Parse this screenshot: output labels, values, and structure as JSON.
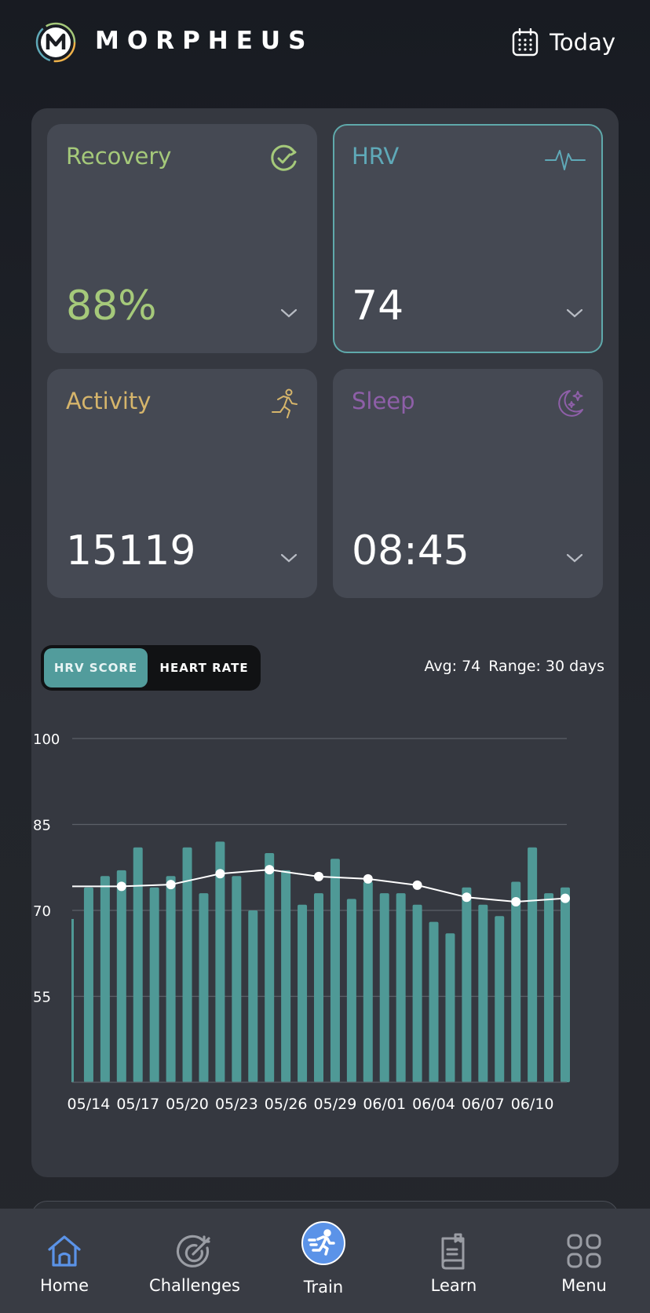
{
  "header": {
    "brand": "MORPHEUS",
    "date_label": "Today"
  },
  "cards": [
    {
      "title": "Recovery",
      "value": "88%",
      "color": "#a5c97a",
      "icon": "recovery-check-icon"
    },
    {
      "title": "HRV",
      "value": "74",
      "color": "#5fa9b8",
      "icon": "heartbeat-icon",
      "selected": true
    },
    {
      "title": "Activity",
      "value": "15119",
      "color": "#d6b56b",
      "icon": "runner-icon"
    },
    {
      "title": "Sleep",
      "value": "08:45",
      "color": "#8e5fa8",
      "icon": "moon-stars-icon"
    }
  ],
  "toggle": {
    "options": [
      "HRV SCORE",
      "HEART RATE"
    ],
    "selected": "HRV SCORE"
  },
  "stats": {
    "avg": "Avg: 74",
    "range": "Range: 30 days"
  },
  "chart_data": {
    "type": "bar",
    "ylim": [
      40,
      100
    ],
    "yticks": [
      100,
      85,
      70,
      55
    ],
    "grid": true,
    "bar_color": "#4f9996",
    "line_color": "#ffffff",
    "x_tick_labels": [
      "05/14",
      "05/17",
      "05/20",
      "05/23",
      "05/26",
      "05/29",
      "06/01",
      "06/04",
      "06/07",
      "06/10"
    ],
    "dates": [
      "05/13",
      "05/14",
      "05/15",
      "05/16",
      "05/17",
      "05/18",
      "05/19",
      "05/20",
      "05/21",
      "05/22",
      "05/23",
      "05/24",
      "05/25",
      "05/26",
      "05/27",
      "05/28",
      "05/29",
      "05/30",
      "05/31",
      "06/01",
      "06/02",
      "06/03",
      "06/04",
      "06/05",
      "06/06",
      "06/07",
      "06/08",
      "06/09",
      "06/10",
      "06/11",
      "06/12"
    ],
    "series": [
      {
        "type": "bar",
        "values": [
          68.5,
          74,
          76,
          77,
          81,
          74,
          76,
          81,
          73,
          82,
          76,
          70,
          80,
          77,
          71,
          73,
          79,
          72,
          75,
          73,
          73,
          71,
          68,
          66,
          74,
          71,
          69,
          75,
          81,
          73,
          74
        ]
      },
      {
        "type": "line",
        "x": [
          "05/13",
          "05/16",
          "05/19",
          "05/22",
          "05/25",
          "05/28",
          "05/31",
          "06/03",
          "06/06",
          "06/09",
          "06/12"
        ],
        "values": [
          74.2,
          74.2,
          74.5,
          76.4,
          77.1,
          75.9,
          75.5,
          74.4,
          72.3,
          71.5,
          72.1
        ],
        "markers_from": 1
      }
    ]
  },
  "nav": [
    {
      "label": "Home",
      "icon": "home-icon",
      "active": true
    },
    {
      "label": "Challenges",
      "icon": "target-icon"
    },
    {
      "label": "Train",
      "icon": "runner-icon"
    },
    {
      "label": "Learn",
      "icon": "book-icon"
    },
    {
      "label": "Menu",
      "icon": "grid-icon"
    }
  ]
}
